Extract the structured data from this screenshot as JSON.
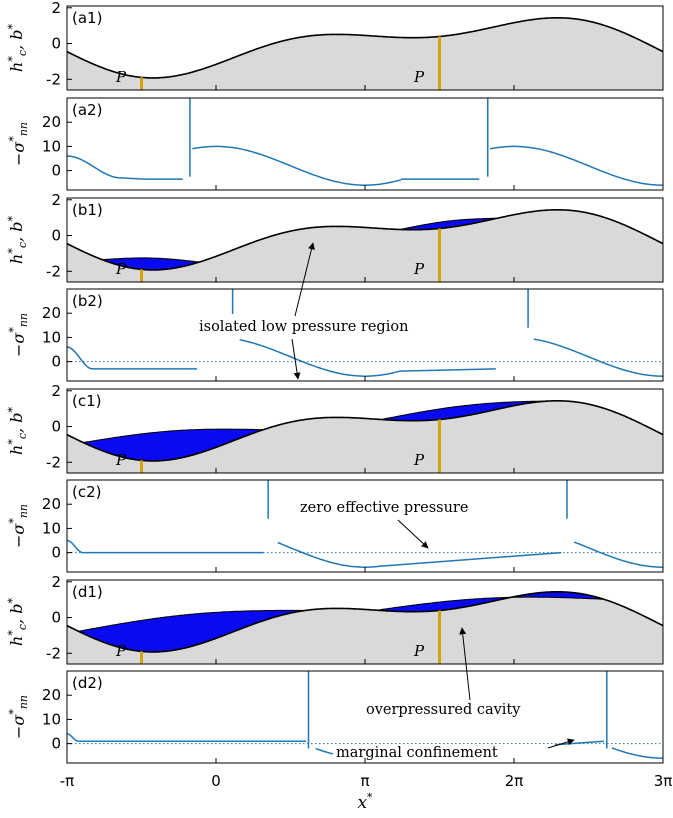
{
  "chart_data": {
    "type": "line",
    "x_ticks": [
      "-π",
      "0",
      "π",
      "2π",
      "3π"
    ],
    "x_tick_values": [
      -3.14159,
      0,
      3.14159,
      6.28319,
      9.42478
    ],
    "xlabel": "x*",
    "xlim": [
      -3.14159,
      9.42478
    ],
    "colors": {
      "bed_fill": "#d9d9d9",
      "bed_line": "#000000",
      "cavity": "#0a0af0",
      "stress_line": "#1f77b4",
      "marker": "#d4a20c",
      "dotted_ref": "#1f77b4"
    },
    "panels": [
      {
        "id": "a1",
        "label": "(a1)",
        "kind": "geometry",
        "ylabel": "h*c, b*",
        "yticks": [
          2,
          0,
          -2
        ],
        "ylim": [
          -2.6,
          2.1
        ],
        "marker_label": "P",
        "marker_x": [
          -1.5708,
          4.7124
        ],
        "cavity": []
      },
      {
        "id": "a2",
        "label": "(a2)",
        "kind": "stress",
        "ylabel": "−σ*nn",
        "yticks": [
          20,
          10,
          0
        ],
        "ylim": [
          -8,
          30
        ],
        "annotations": []
      },
      {
        "id": "b1",
        "label": "(b1)",
        "kind": "geometry",
        "ylabel": "h*c, b*",
        "yticks": [
          2,
          0,
          -2
        ],
        "ylim": [
          -2.6,
          2.1
        ],
        "marker_label": "P",
        "marker_x": [
          -1.5708,
          4.7124
        ],
        "cavity": [
          [
            -2.4,
            -0.35
          ],
          [
            3.88,
            5.93
          ]
        ]
      },
      {
        "id": "b2",
        "label": "(b2)",
        "kind": "stress",
        "ylabel": "−σ*nn",
        "yticks": [
          20,
          10,
          0
        ],
        "ylim": [
          -8,
          30
        ],
        "annotations": [
          {
            "text": "isolated low pressure region"
          }
        ]
      },
      {
        "id": "c1",
        "label": "(c1)",
        "kind": "geometry",
        "ylabel": "h*c, b*",
        "yticks": [
          2,
          0,
          -2
        ],
        "ylim": [
          -2.6,
          2.1
        ],
        "marker_label": "P",
        "marker_x": [
          -1.5708,
          4.7124
        ],
        "cavity": [
          [
            -2.8,
            1.0
          ],
          [
            3.48,
            7.28
          ]
        ]
      },
      {
        "id": "c2",
        "label": "(c2)",
        "kind": "stress",
        "ylabel": "−σ*nn",
        "yticks": [
          20,
          10,
          0
        ],
        "ylim": [
          -8,
          30
        ],
        "annotations": [
          {
            "text": "zero effective pressure"
          }
        ]
      },
      {
        "id": "d1",
        "label": "(d1)",
        "kind": "geometry",
        "ylabel": "h*c, b*",
        "yticks": [
          2,
          0,
          -2
        ],
        "ylim": [
          -2.6,
          2.1
        ],
        "marker_label": "P",
        "marker_x": [
          -1.5708,
          4.7124
        ],
        "cavity": [
          [
            -2.9,
            1.9
          ],
          [
            3.38,
            8.18
          ]
        ]
      },
      {
        "id": "d2",
        "label": "(d2)",
        "kind": "stress",
        "ylabel": "−σ*nn",
        "yticks": [
          20,
          10,
          0
        ],
        "ylim": [
          -8,
          30
        ],
        "annotations": [
          {
            "text": "overpressured cavity"
          },
          {
            "text": "marginal confinement"
          }
        ]
      }
    ]
  }
}
